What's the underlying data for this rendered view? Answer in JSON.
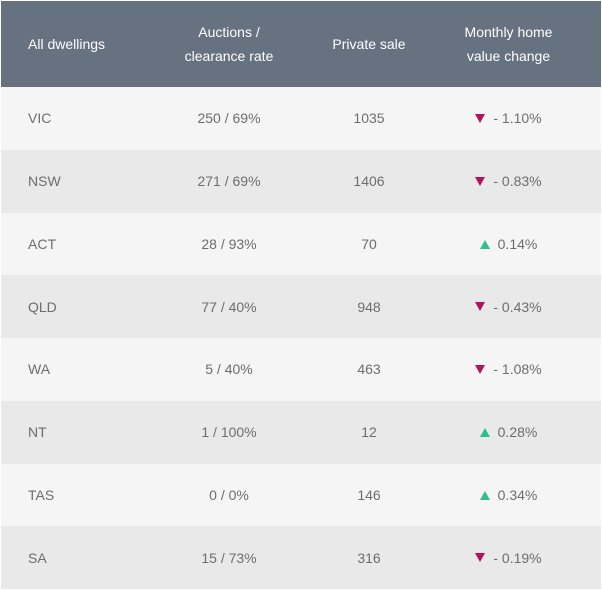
{
  "chart_data": {
    "type": "table",
    "columns": [
      {
        "lines": [
          "All dwellings"
        ]
      },
      {
        "lines": [
          "Auctions /",
          "clearance rate"
        ]
      },
      {
        "lines": [
          "Private sale"
        ]
      },
      {
        "lines": [
          "Monthly home",
          "value change"
        ]
      }
    ],
    "rows": [
      {
        "state": "VIC",
        "auctions": "250 / 69%",
        "private_sale": "1035",
        "direction": "down",
        "change": "- 1.10%"
      },
      {
        "state": "NSW",
        "auctions": "271 / 69%",
        "private_sale": "1406",
        "direction": "down",
        "change": "- 0.83%"
      },
      {
        "state": "ACT",
        "auctions": "28 / 93%",
        "private_sale": "70",
        "direction": "up",
        "change": "0.14%"
      },
      {
        "state": "QLD",
        "auctions": "77 / 40%",
        "private_sale": "948",
        "direction": "down",
        "change": "- 0.43%"
      },
      {
        "state": "WA",
        "auctions": "5 / 40%",
        "private_sale": "463",
        "direction": "down",
        "change": "- 1.08%"
      },
      {
        "state": "NT",
        "auctions": "1 / 100%",
        "private_sale": "12",
        "direction": "up",
        "change": "0.28%"
      },
      {
        "state": "TAS",
        "auctions": "0 / 0%",
        "private_sale": "146",
        "direction": "up",
        "change": "0.34%"
      },
      {
        "state": "SA",
        "auctions": "15 / 73%",
        "private_sale": "316",
        "direction": "down",
        "change": "- 0.19%"
      }
    ]
  },
  "colors": {
    "header_bg": "#66727f",
    "row_light": "#f5f5f5",
    "row_dark": "#e9e9e9",
    "down_arrow": "#b0145c",
    "up_arrow": "#2dbf8f",
    "text": "#6d6d6d"
  },
  "icons": {
    "down": "down-triangle-icon",
    "up": "up-triangle-icon"
  }
}
